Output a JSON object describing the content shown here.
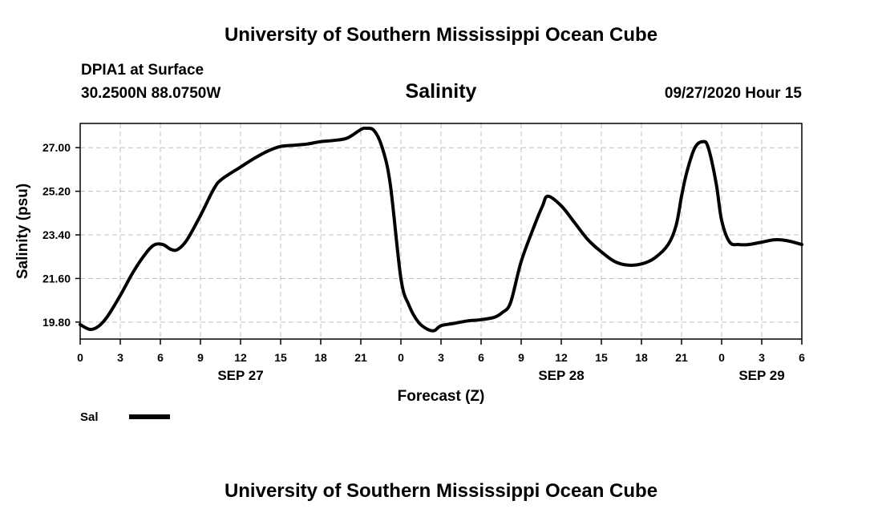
{
  "header": {
    "title": "University of Southern Mississippi Ocean Cube",
    "station": "DPIA1 at Surface",
    "coords": "30.2500N 88.0750W",
    "chart_title": "Salinity",
    "datetime": "09/27/2020 Hour 15"
  },
  "footer": {
    "title": "University of Southern Mississippi Ocean Cube"
  },
  "chart_data": {
    "type": "line",
    "title": "Salinity",
    "xlabel": "Forecast (Z)",
    "ylabel": "Salinity (psu)",
    "x_unit": "forecast hour",
    "xlim": [
      0,
      54
    ],
    "ylim": [
      19.1,
      28.0
    ],
    "grid": true,
    "legend_position": "bottom-left",
    "x_ticks": [
      {
        "hour": 0,
        "label": "0"
      },
      {
        "hour": 3,
        "label": "3"
      },
      {
        "hour": 6,
        "label": "6"
      },
      {
        "hour": 9,
        "label": "9"
      },
      {
        "hour": 12,
        "label": "12"
      },
      {
        "hour": 15,
        "label": "15"
      },
      {
        "hour": 18,
        "label": "18"
      },
      {
        "hour": 21,
        "label": "21"
      },
      {
        "hour": 24,
        "label": "0"
      },
      {
        "hour": 27,
        "label": "3"
      },
      {
        "hour": 30,
        "label": "6"
      },
      {
        "hour": 33,
        "label": "9"
      },
      {
        "hour": 36,
        "label": "12"
      },
      {
        "hour": 39,
        "label": "15"
      },
      {
        "hour": 42,
        "label": "18"
      },
      {
        "hour": 45,
        "label": "21"
      },
      {
        "hour": 48,
        "label": "0"
      },
      {
        "hour": 51,
        "label": "3"
      },
      {
        "hour": 54,
        "label": "6"
      }
    ],
    "date_labels": [
      {
        "hour": 12,
        "label": "SEP 27"
      },
      {
        "hour": 36,
        "label": "SEP 28"
      },
      {
        "hour": 51,
        "label": "SEP 29"
      }
    ],
    "y_ticks": [
      {
        "value": 19.8,
        "label": "19.80"
      },
      {
        "value": 21.6,
        "label": "21.60"
      },
      {
        "value": 23.4,
        "label": "23.40"
      },
      {
        "value": 25.2,
        "label": "25.20"
      },
      {
        "value": 27.0,
        "label": "27.00"
      }
    ],
    "series": [
      {
        "name": "Sal",
        "color": "#000000",
        "x": [
          0,
          0.7,
          1.3,
          2,
          3,
          4,
          5,
          5.6,
          6.2,
          6.8,
          7.3,
          8,
          9,
          10,
          10.6,
          12,
          13,
          14,
          15,
          16,
          17,
          18,
          19,
          20,
          21,
          21.4,
          22,
          22.6,
          23.2,
          24,
          24.6,
          25.3,
          26,
          26.5,
          27,
          28,
          29,
          30,
          31,
          31.6,
          32.2,
          33,
          34,
          34.6,
          35,
          36,
          37,
          38,
          39,
          40,
          41,
          42,
          43,
          44,
          44.6,
          45,
          45.4,
          46,
          46.6,
          47,
          47.6,
          48,
          48.6,
          49.3,
          50,
          51,
          52,
          53,
          54
        ],
        "y": [
          19.7,
          19.5,
          19.6,
          20.0,
          20.9,
          21.9,
          22.7,
          23.0,
          23.0,
          22.8,
          22.8,
          23.2,
          24.2,
          25.3,
          25.7,
          26.2,
          26.55,
          26.85,
          27.05,
          27.1,
          27.15,
          27.25,
          27.3,
          27.4,
          27.75,
          27.8,
          27.7,
          27.0,
          25.5,
          21.6,
          20.5,
          19.8,
          19.5,
          19.45,
          19.65,
          19.75,
          19.85,
          19.9,
          20.0,
          20.2,
          20.6,
          22.3,
          23.8,
          24.6,
          25.0,
          24.6,
          23.9,
          23.2,
          22.7,
          22.3,
          22.15,
          22.2,
          22.45,
          23.0,
          23.8,
          25.0,
          26.0,
          27.0,
          27.25,
          27.0,
          25.5,
          24.0,
          23.1,
          23.0,
          23.0,
          23.1,
          23.2,
          23.15,
          23.0
        ]
      }
    ]
  }
}
